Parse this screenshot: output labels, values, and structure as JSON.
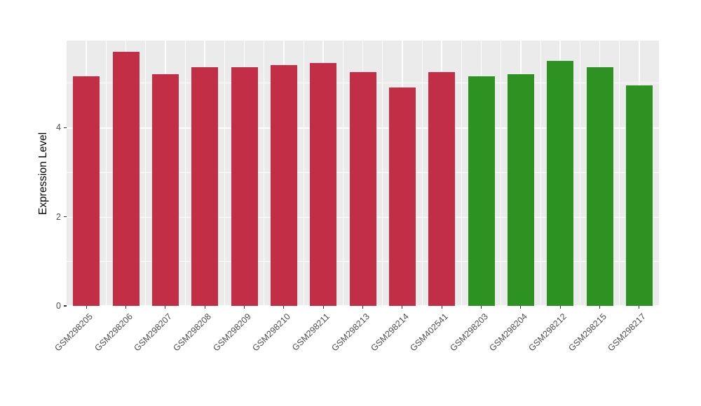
{
  "figure": {
    "background": "#ffffff"
  },
  "chart_data": {
    "type": "bar",
    "title": "",
    "xlabel": "",
    "ylabel": "Expression Level",
    "ylim": [
      0,
      5.95
    ],
    "yticks": [
      0,
      2,
      4
    ],
    "yticks_minor": [
      1,
      3,
      5
    ],
    "categories": [
      "GSM298205",
      "GSM298206",
      "GSM298207",
      "GSM298208",
      "GSM298209",
      "GSM298210",
      "GSM298211",
      "GSM298213",
      "GSM298214",
      "GSM402541",
      "GSM298203",
      "GSM298204",
      "GSM298212",
      "GSM298215",
      "GSM298217"
    ],
    "values": [
      5.15,
      5.7,
      5.2,
      5.35,
      5.35,
      5.4,
      5.45,
      5.25,
      4.9,
      5.25,
      5.15,
      5.2,
      5.5,
      5.35,
      4.95
    ],
    "bar_colors": [
      "#C22E45",
      "#C22E45",
      "#C22E45",
      "#C22E45",
      "#C22E45",
      "#C22E45",
      "#C22E45",
      "#C22E45",
      "#C22E45",
      "#C22E45",
      "#2E9222",
      "#2E9222",
      "#2E9222",
      "#2E9222",
      "#2E9222"
    ],
    "groups": [
      {
        "name": "red-group",
        "color": "#C22E45",
        "count": 10
      },
      {
        "name": "green-group",
        "color": "#2E9222",
        "count": 5
      }
    ],
    "panel_bg": "#EBEBEB",
    "grid_color": "#FFFFFF",
    "tick_label_color": "#4D4D4D",
    "tick_mark_color": "#333333",
    "legend": "none",
    "grid": "on"
  }
}
